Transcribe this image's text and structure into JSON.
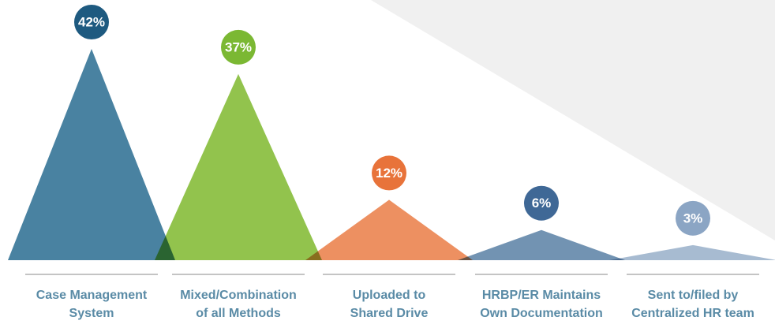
{
  "chart_data": {
    "type": "peak",
    "categories": [
      "Case Management\nSystem",
      "Mixed/Combination\nof all Methods",
      "Uploaded to\nShared Drive",
      "HRBP/ER Maintains\nOwn Documentation",
      "Sent to/filed by\nCentralized HR team"
    ],
    "values": [
      42,
      37,
      12,
      6,
      3
    ],
    "value_labels": [
      "42%",
      "37%",
      "12%",
      "6%",
      "3%"
    ],
    "colors": [
      "#3f7b9c",
      "#8cc043",
      "#ec8a58",
      "#6a8dae",
      "#a2b7cf"
    ],
    "badge_colors": [
      "#1e5a80",
      "#7bb833",
      "#e8733a",
      "#3f6896",
      "#8ba5c4"
    ]
  }
}
